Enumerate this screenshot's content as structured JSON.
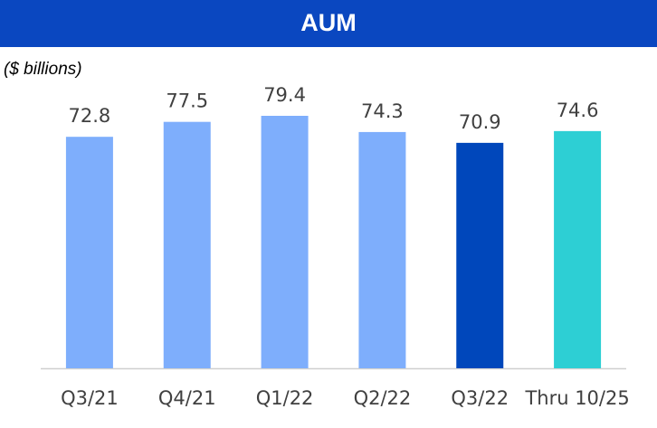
{
  "chart_data": {
    "type": "bar",
    "title": "AUM",
    "subtitle": "($ billions)",
    "categories": [
      "Q3/21",
      "Q4/21",
      "Q1/22",
      "Q2/22",
      "Q3/22",
      "Thru 10/25"
    ],
    "values": [
      72.8,
      77.5,
      79.4,
      74.3,
      70.9,
      74.6
    ],
    "colors": [
      "#7eaefc",
      "#7eaefc",
      "#7eaefc",
      "#7eaefc",
      "#0047bb",
      "#2dcfd4"
    ]
  }
}
